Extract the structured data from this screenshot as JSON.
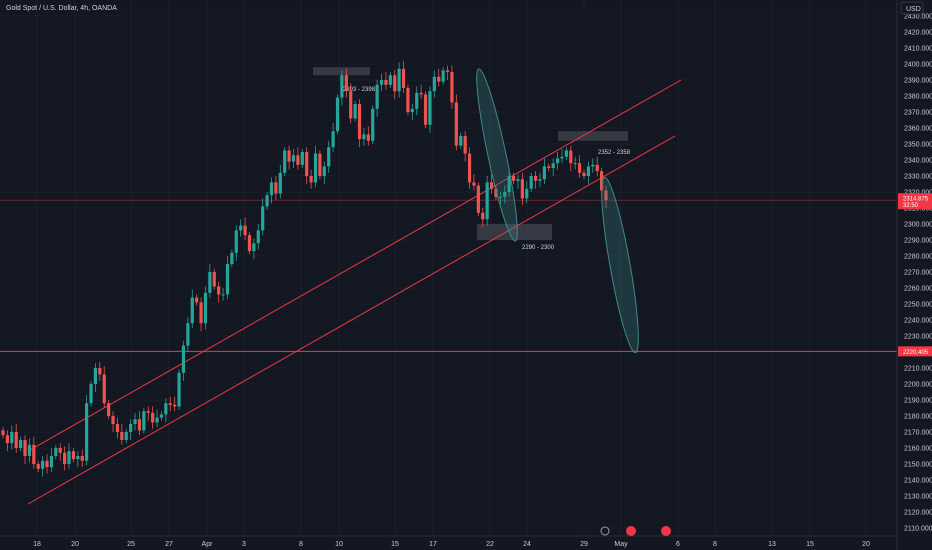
{
  "header": {
    "symbol_title": "Gold Spot / U.S. Dollar, 4h, OANDA",
    "currency": "USD"
  },
  "colors": {
    "background": "#131722",
    "up": "#26a69a",
    "down": "#ef5350",
    "line": "#f23645",
    "ellipse": "#3d8a86",
    "zone": "#3b3f4a"
  },
  "chart_data": {
    "type": "candlestick",
    "title": "Gold Spot / U.S. Dollar, 4h, OANDA",
    "y_axis": {
      "label": "USD",
      "range": [
        2105,
        2440
      ],
      "ticks": [
        "2430.000",
        "2420.000",
        "2410.000",
        "2400.000",
        "2390.000",
        "2380.000",
        "2370.000",
        "2360.000",
        "2350.000",
        "2340.000",
        "2330.000",
        "2320.000",
        "2310.000",
        "2300.000",
        "2290.000",
        "2280.000",
        "2270.000",
        "2260.000",
        "2250.000",
        "2240.000",
        "2230.000",
        "2220.000",
        "2210.000",
        "2200.000",
        "2190.000",
        "2180.000",
        "2170.000",
        "2160.000",
        "2150.000",
        "2140.000",
        "2130.000",
        "2120.000",
        "2110.000"
      ]
    },
    "x_axis": {
      "ticks": [
        "18",
        "20",
        "25",
        "27",
        "Apr",
        "3",
        "8",
        "10",
        "15",
        "17",
        "22",
        "24",
        "29",
        "May",
        "6",
        "8",
        "13",
        "15",
        "20"
      ]
    },
    "price_tags": [
      {
        "value": "2314.875",
        "sub": "32:50"
      },
      {
        "value": "2220.405"
      }
    ],
    "zones": [
      {
        "label": "2393 - 2398",
        "low": 2393,
        "high": 2398
      },
      {
        "label": "2352 - 2358",
        "low": 2352,
        "high": 2358
      },
      {
        "label": "2290 - 2300",
        "low": 2290,
        "high": 2300
      }
    ],
    "channel_lines": [
      {
        "from": "2024-03-18",
        "to": "2024-05-01",
        "start": 2125,
        "end": 2355
      },
      {
        "from": "2024-03-18",
        "to": "2024-05-02",
        "start": 2158,
        "end": 2390
      }
    ],
    "horizontal_lines": [
      2314.875,
      2220.405
    ],
    "projection": {
      "from": 2315,
      "to": 2220
    },
    "closes": [
      2168,
      2163,
      2170,
      2160,
      2165,
      2155,
      2162,
      2150,
      2147,
      2152,
      2148,
      2155,
      2160,
      2157,
      2150,
      2158,
      2153,
      2155,
      2152,
      2188,
      2200,
      2210,
      2206,
      2188,
      2180,
      2175,
      2170,
      2165,
      2170,
      2175,
      2178,
      2171,
      2183,
      2182,
      2176,
      2179,
      2181,
      2188,
      2187,
      2186,
      2207,
      2224,
      2238,
      2254,
      2251,
      2238,
      2257,
      2270,
      2261,
      2256,
      2256,
      2275,
      2282,
      2296,
      2299,
      2293,
      2283,
      2288,
      2296,
      2311,
      2318,
      2326,
      2319,
      2332,
      2346,
      2339,
      2343,
      2337,
      2345,
      2330,
      2326,
      2344,
      2330,
      2336,
      2348,
      2358,
      2379,
      2393,
      2383,
      2366,
      2375,
      2353,
      2356,
      2352,
      2372,
      2387,
      2390,
      2387,
      2393,
      2383,
      2397,
      2385,
      2370,
      2372,
      2382,
      2381,
      2362,
      2383,
      2392,
      2389,
      2396,
      2395,
      2376,
      2349,
      2355,
      2344,
      2326,
      2324,
      2307,
      2303,
      2326,
      2322,
      2317,
      2317,
      2320,
      2330,
      2327,
      2328,
      2316,
      2322,
      2330,
      2327,
      2328,
      2336,
      2335,
      2338,
      2341,
      2342,
      2346,
      2338,
      2338,
      2332,
      2330,
      2336,
      2337,
      2333,
      2321,
      2314.875
    ]
  }
}
